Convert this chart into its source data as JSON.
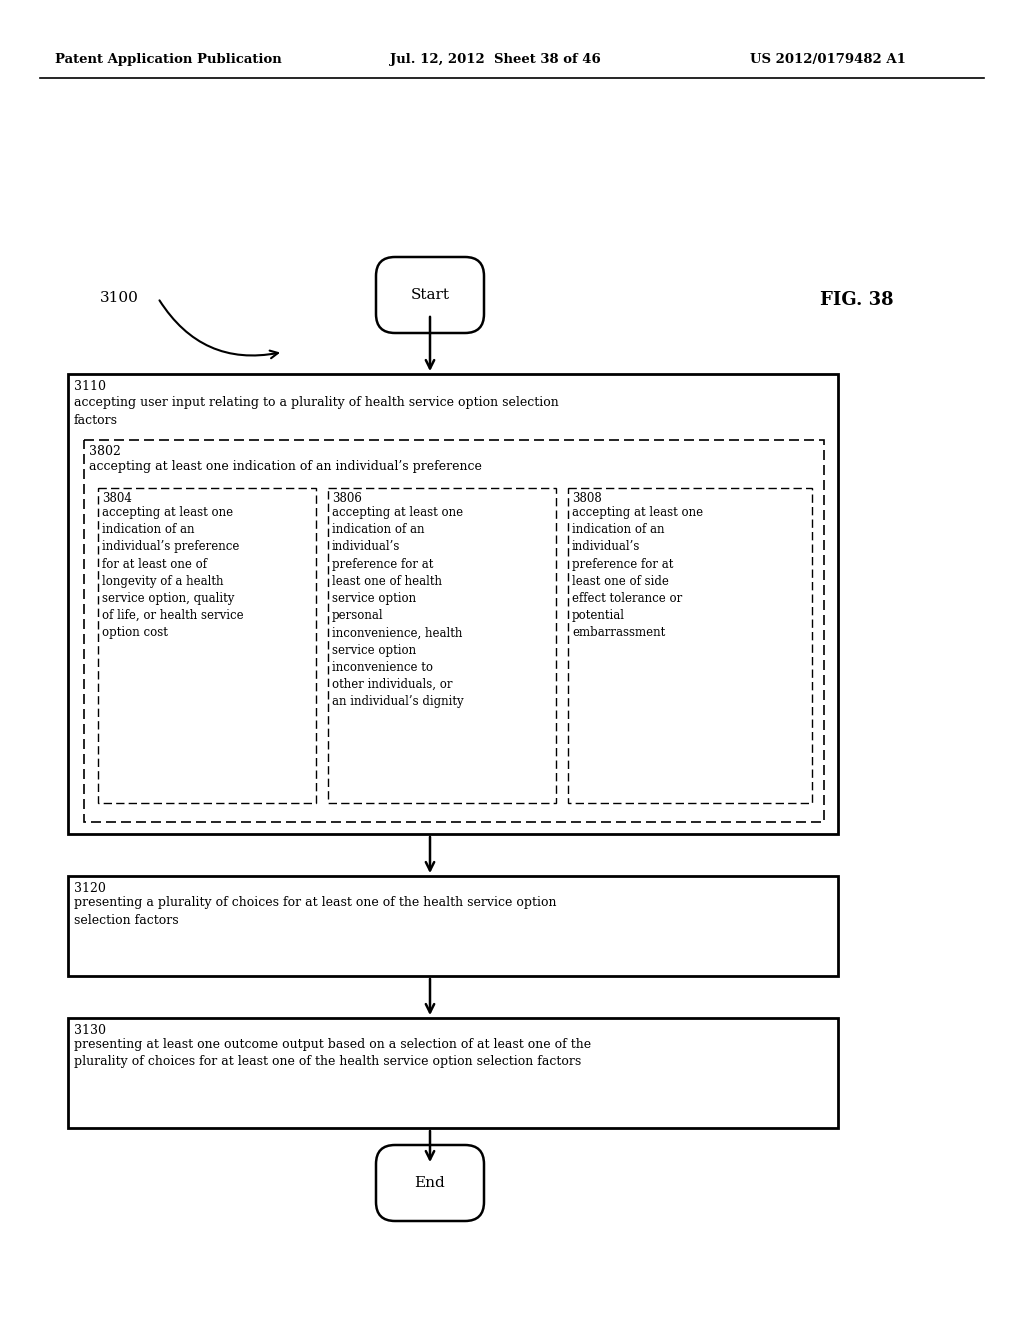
{
  "header_left": "Patent Application Publication",
  "header_mid": "Jul. 12, 2012  Sheet 38 of 46",
  "header_right": "US 2012/0179482 A1",
  "fig_label": "FIG. 38",
  "flow_label": "3100",
  "start_text": "Start",
  "end_text": "End",
  "box3110_id": "3110",
  "box3110_text": "accepting user input relating to a plurality of health service option selection\nfactors",
  "box3802_id": "3802",
  "box3802_text": "accepting at least one indication of an individual’s preference",
  "box3804_id": "3804",
  "box3804_text": "accepting at least one\nindication of an\nindividual’s preference\nfor at least one of\nlongevity of a health\nservice option, quality\nof life, or health service\noption cost",
  "box3806_id": "3806",
  "box3806_text": "accepting at least one\nindication of an\nindividual’s\npreference for at\nleast one of health\nservice option\npersonal\ninconvenience, health\nservice option\ninconvenience to\nother individuals, or\nan individual’s dignity",
  "box3808_id": "3808",
  "box3808_text": "accepting at least one\nindication of an\nindividual’s\npreference for at\nleast one of side\neffect tolerance or\npotential\nembarrassment",
  "box3120_id": "3120",
  "box3120_text": "presenting a plurality of choices for at least one of the health service option\nselection factors",
  "box3130_id": "3130",
  "box3130_text": "presenting at least one outcome output based on a selection of at least one of the\nplurality of choices for at least one of the health service option selection factors",
  "bg_color": "#ffffff",
  "text_color": "#000000"
}
